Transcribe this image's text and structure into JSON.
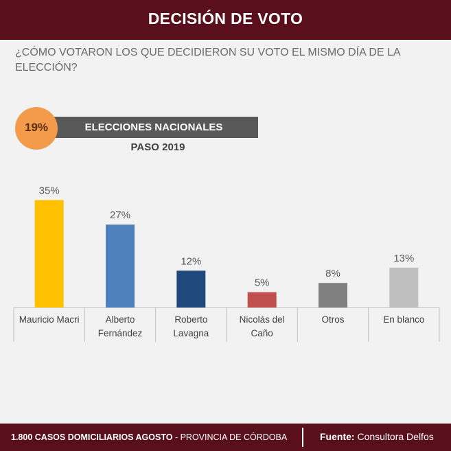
{
  "header": {
    "title": "DECISIÓN DE VOTO"
  },
  "question": "¿CÓMO VOTARON LOS QUE DECIDIERON SU VOTO EL MISMO DÍA DE LA ELECCIÓN?",
  "badge": {
    "percent": "19%",
    "label": "ELECCIONES NACIONALES",
    "sublabel": "PASO 2019"
  },
  "chart_data": {
    "type": "bar",
    "title": "",
    "categories": [
      "Mauricio Macri",
      "Alberto Fernández",
      "Roberto Lavagna",
      "Nicolás del Caño",
      "Otros",
      "En blanco"
    ],
    "category_lines": [
      [
        "Mauricio Macri"
      ],
      [
        "Alberto",
        "Fernández"
      ],
      [
        "Roberto",
        "Lavagna"
      ],
      [
        "Nicolás del",
        "Caño"
      ],
      [
        "Otros"
      ],
      [
        "En blanco"
      ]
    ],
    "values": [
      35,
      27,
      12,
      5,
      8,
      13
    ],
    "value_labels": [
      "35%",
      "27%",
      "12%",
      "5%",
      "8%",
      "13%"
    ],
    "colors": [
      "#ffc000",
      "#4f81bd",
      "#1f497d",
      "#c0504d",
      "#808080",
      "#bfbfbf"
    ],
    "ylim": [
      0,
      38
    ],
    "xlabel": "",
    "ylabel": "",
    "grid": false
  },
  "footer": {
    "cases_bold": "1.800",
    "cases_text": "CASOS DOMICILIARIOS AGOSTO",
    "province": " - PROVINCIA DE CÓRDOBA",
    "source_label": "Fuente:",
    "source_value": " Consultora Delfos"
  }
}
